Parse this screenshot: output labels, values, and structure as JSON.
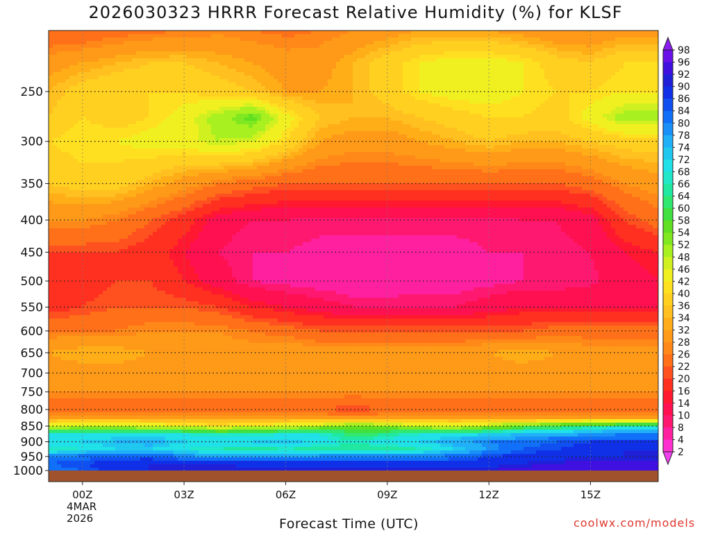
{
  "chart_data": {
    "type": "heatmap",
    "title": "2026030323 HRRR Forecast Relative Humidity (%) for KLSF",
    "xlabel": "Forecast Time (UTC)",
    "ylabel": "",
    "x_tick_labels": [
      "00Z",
      "03Z",
      "06Z",
      "09Z",
      "12Z",
      "15Z"
    ],
    "x_tick_hours": [
      0,
      3,
      6,
      9,
      12,
      15
    ],
    "xlim_hours": [
      -1,
      17
    ],
    "date_label": [
      "4MAR",
      "2026"
    ],
    "y_tick_labels": [
      "250",
      "300",
      "350",
      "400",
      "450",
      "500",
      "550",
      "600",
      "650",
      "700",
      "750",
      "800",
      "850",
      "900",
      "950",
      "1000"
    ],
    "y_ticks_hpa": [
      250,
      300,
      350,
      400,
      450,
      500,
      550,
      600,
      650,
      700,
      750,
      800,
      850,
      900,
      950,
      1000
    ],
    "ylim_hpa": [
      200,
      1000
    ],
    "y_scale": "log-pressure (inverted)",
    "grid": true,
    "surface_color": "#a0522d",
    "colorbar_labels": [
      98,
      96,
      92,
      90,
      86,
      84,
      80,
      78,
      74,
      72,
      68,
      66,
      64,
      60,
      58,
      54,
      52,
      48,
      46,
      42,
      40,
      36,
      34,
      32,
      28,
      26,
      22,
      20,
      16,
      14,
      10,
      8,
      4,
      2
    ],
    "colorbar_colors": [
      "#8a1cf0",
      "#6a10e8",
      "#4010e0",
      "#2020d8",
      "#1030e8",
      "#1050f0",
      "#1070f8",
      "#1890f8",
      "#20b0f8",
      "#20c8f0",
      "#20e0e8",
      "#20e8c8",
      "#20e8a0",
      "#30e870",
      "#40e040",
      "#60e020",
      "#80e820",
      "#a8f020",
      "#d0f020",
      "#f0f020",
      "#ffe020",
      "#ffd020",
      "#ffc020",
      "#ffae18",
      "#ff9a18",
      "#ff8818",
      "#ff7018",
      "#ff5020",
      "#ff3020",
      "#ff1830",
      "#ff1050",
      "#ff1870",
      "#ff20a0",
      "#ff30d0",
      "#f040f0"
    ],
    "rh_grid": {
      "hours": [
        -1,
        0,
        1,
        2,
        3,
        4,
        5,
        6,
        7,
        8,
        9,
        10,
        11,
        12,
        13,
        14,
        15,
        16,
        17
      ],
      "levels_hpa": [
        200,
        225,
        250,
        275,
        300,
        350,
        400,
        450,
        500,
        550,
        600,
        650,
        700,
        750,
        800,
        825,
        850,
        875,
        900,
        925,
        950,
        975,
        1000
      ],
      "values": [
        [
          22,
          22,
          24,
          25,
          26,
          27,
          26,
          25,
          26,
          28,
          30,
          32,
          32,
          32,
          30,
          28,
          28,
          30,
          30
        ],
        [
          30,
          32,
          34,
          36,
          36,
          34,
          32,
          30,
          30,
          34,
          38,
          42,
          44,
          44,
          42,
          38,
          36,
          40,
          40
        ],
        [
          34,
          38,
          40,
          40,
          40,
          38,
          36,
          32,
          32,
          34,
          38,
          42,
          44,
          44,
          42,
          40,
          40,
          42,
          42
        ],
        [
          36,
          40,
          38,
          40,
          44,
          50,
          56,
          44,
          36,
          34,
          34,
          36,
          38,
          40,
          40,
          38,
          44,
          50,
          50
        ],
        [
          40,
          42,
          42,
          44,
          44,
          48,
          46,
          40,
          32,
          30,
          30,
          32,
          34,
          36,
          34,
          34,
          36,
          38,
          38
        ],
        [
          36,
          38,
          38,
          34,
          30,
          26,
          24,
          22,
          22,
          22,
          22,
          22,
          22,
          22,
          22,
          22,
          24,
          28,
          30
        ],
        [
          28,
          28,
          26,
          22,
          18,
          12,
          10,
          10,
          9,
          9,
          9,
          9,
          9,
          9,
          10,
          10,
          12,
          20,
          24
        ],
        [
          20,
          20,
          20,
          18,
          14,
          10,
          8,
          8,
          7,
          7,
          7,
          7,
          7,
          8,
          8,
          9,
          10,
          14,
          16
        ],
        [
          16,
          18,
          20,
          20,
          16,
          12,
          8,
          7,
          6,
          5,
          5,
          6,
          6,
          7,
          8,
          8,
          9,
          12,
          14
        ],
        [
          18,
          20,
          22,
          22,
          22,
          20,
          16,
          14,
          12,
          10,
          10,
          10,
          10,
          12,
          14,
          14,
          14,
          14,
          14
        ],
        [
          26,
          26,
          26,
          28,
          28,
          28,
          26,
          24,
          22,
          22,
          22,
          22,
          22,
          22,
          22,
          24,
          24,
          24,
          24
        ],
        [
          32,
          34,
          34,
          32,
          32,
          30,
          30,
          32,
          30,
          30,
          30,
          30,
          30,
          32,
          34,
          32,
          30,
          30,
          30
        ],
        [
          30,
          30,
          30,
          30,
          30,
          30,
          30,
          30,
          30,
          30,
          30,
          30,
          30,
          30,
          30,
          30,
          30,
          30,
          30
        ],
        [
          28,
          28,
          28,
          28,
          28,
          28,
          28,
          28,
          28,
          28,
          28,
          28,
          28,
          28,
          28,
          28,
          28,
          28,
          28
        ],
        [
          22,
          22,
          22,
          22,
          22,
          22,
          22,
          22,
          22,
          20,
          22,
          22,
          22,
          22,
          22,
          22,
          22,
          22,
          22
        ],
        [
          30,
          30,
          30,
          30,
          30,
          30,
          30,
          30,
          30,
          30,
          30,
          30,
          30,
          30,
          30,
          30,
          30,
          30,
          30
        ],
        [
          46,
          48,
          48,
          46,
          44,
          42,
          44,
          46,
          50,
          54,
          52,
          48,
          46,
          50,
          56,
          60,
          64,
          66,
          66
        ],
        [
          68,
          70,
          70,
          70,
          68,
          66,
          66,
          68,
          68,
          62,
          64,
          68,
          70,
          72,
          74,
          76,
          78,
          80,
          80
        ],
        [
          70,
          72,
          74,
          76,
          72,
          70,
          72,
          74,
          70,
          66,
          70,
          72,
          76,
          80,
          82,
          84,
          86,
          86,
          86
        ],
        [
          66,
          68,
          72,
          72,
          68,
          66,
          64,
          66,
          64,
          64,
          64,
          66,
          72,
          78,
          84,
          86,
          88,
          90,
          90
        ],
        [
          80,
          82,
          84,
          84,
          80,
          78,
          76,
          78,
          80,
          80,
          80,
          80,
          82,
          86,
          88,
          88,
          90,
          90,
          90
        ],
        [
          84,
          86,
          88,
          90,
          90,
          90,
          88,
          88,
          88,
          88,
          88,
          88,
          88,
          88,
          90,
          92,
          94,
          94,
          94
        ],
        [
          82,
          84,
          88,
          90,
          92,
          92,
          92,
          92,
          92,
          92,
          92,
          92,
          92,
          92,
          94,
          96,
          96,
          96,
          96
        ]
      ]
    }
  }
}
